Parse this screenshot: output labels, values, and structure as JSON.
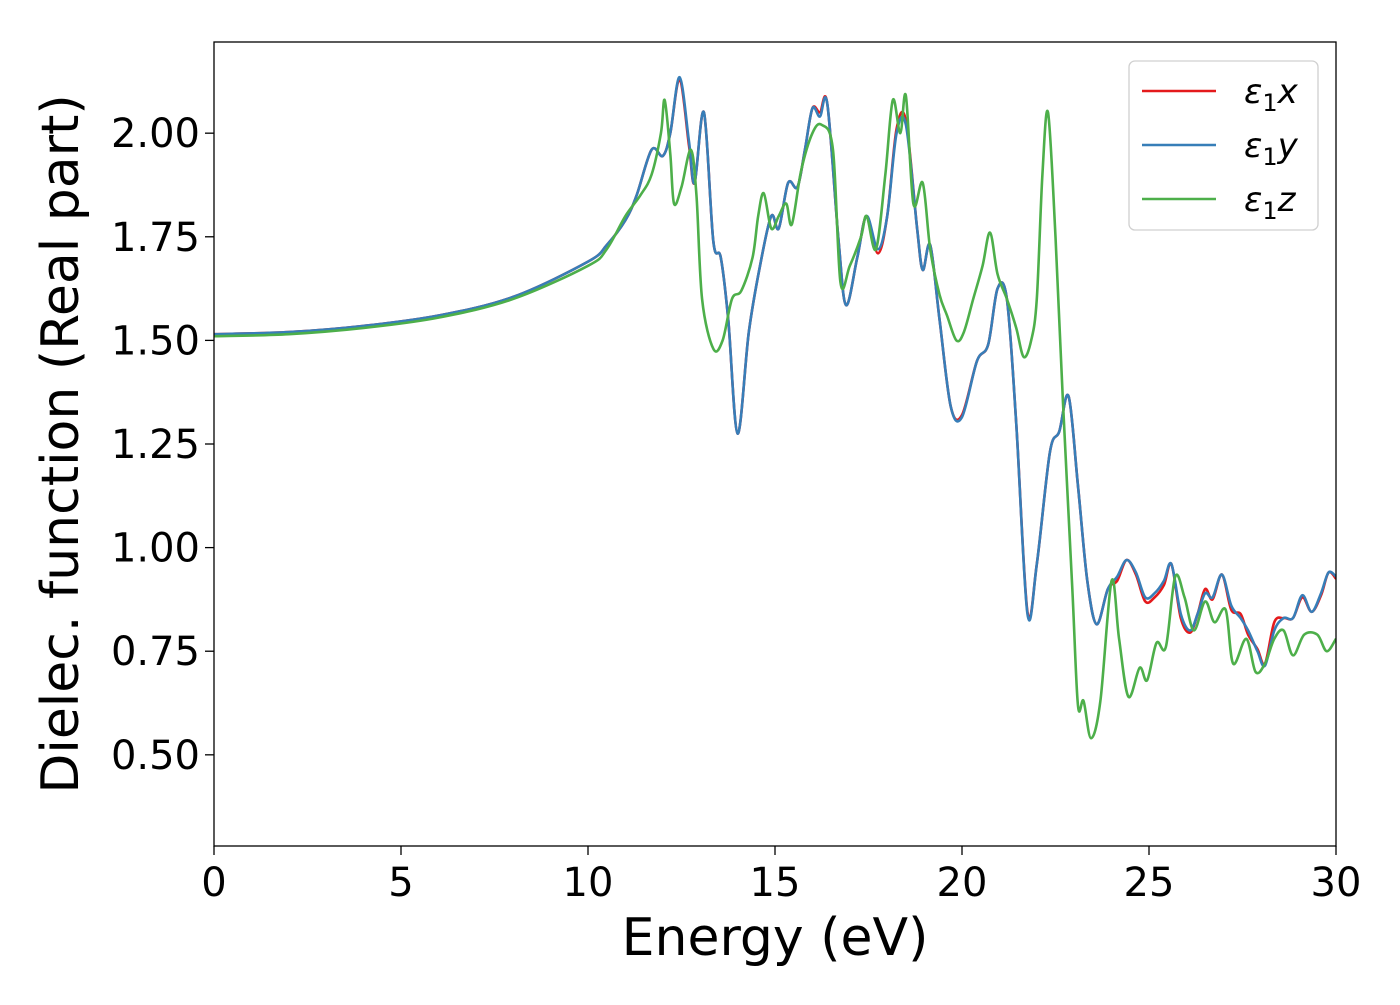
{
  "chart_data": {
    "type": "line",
    "xlabel": "Energy (eV)",
    "ylabel": "Dielec. function (Real part)",
    "xlim": [
      0,
      30
    ],
    "ylim": [
      0.28,
      2.22
    ],
    "x_ticks": [
      0,
      5,
      10,
      15,
      20,
      25,
      30
    ],
    "x_tick_labels": [
      "0",
      "5",
      "10",
      "15",
      "20",
      "25",
      "30"
    ],
    "y_ticks": [
      0.5,
      0.75,
      1.0,
      1.25,
      1.5,
      1.75,
      2.0
    ],
    "y_tick_labels": [
      "0.50",
      "0.75",
      "1.00",
      "1.25",
      "1.50",
      "1.75",
      "2.00"
    ],
    "grid": false,
    "legend_position": "top-right",
    "series": [
      {
        "name": "ε₁x",
        "legend_main": "ε",
        "legend_sub": "1",
        "legend_suffix": "x",
        "color": "#e41a1c",
        "points": [
          [
            0,
            1.515
          ],
          [
            2,
            1.52
          ],
          [
            4,
            1.535
          ],
          [
            6,
            1.56
          ],
          [
            8,
            1.605
          ],
          [
            10,
            1.69
          ],
          [
            10.5,
            1.73
          ],
          [
            11,
            1.79
          ],
          [
            11.3,
            1.85
          ],
          [
            11.7,
            1.96
          ],
          [
            12.0,
            1.945
          ],
          [
            12.2,
            2.0
          ],
          [
            12.45,
            2.13
          ],
          [
            12.7,
            1.97
          ],
          [
            12.85,
            1.88
          ],
          [
            13.1,
            2.05
          ],
          [
            13.35,
            1.74
          ],
          [
            13.55,
            1.7
          ],
          [
            13.75,
            1.55
          ],
          [
            14.0,
            1.275
          ],
          [
            14.3,
            1.52
          ],
          [
            14.6,
            1.68
          ],
          [
            14.9,
            1.8
          ],
          [
            15.1,
            1.77
          ],
          [
            15.35,
            1.88
          ],
          [
            15.6,
            1.87
          ],
          [
            15.8,
            1.96
          ],
          [
            16.0,
            2.06
          ],
          [
            16.2,
            2.05
          ],
          [
            16.4,
            2.07
          ],
          [
            16.7,
            1.74
          ],
          [
            16.9,
            1.585
          ],
          [
            17.2,
            1.7
          ],
          [
            17.45,
            1.8
          ],
          [
            17.75,
            1.71
          ],
          [
            18.0,
            1.8
          ],
          [
            18.25,
            2.01
          ],
          [
            18.5,
            2.03
          ],
          [
            18.8,
            1.77
          ],
          [
            18.95,
            1.67
          ],
          [
            19.15,
            1.73
          ],
          [
            19.4,
            1.55
          ],
          [
            19.7,
            1.34
          ],
          [
            20.0,
            1.32
          ],
          [
            20.4,
            1.45
          ],
          [
            20.7,
            1.49
          ],
          [
            20.95,
            1.625
          ],
          [
            21.2,
            1.6
          ],
          [
            21.45,
            1.3
          ],
          [
            21.75,
            0.845
          ],
          [
            22.0,
            0.96
          ],
          [
            22.35,
            1.23
          ],
          [
            22.6,
            1.28
          ],
          [
            22.85,
            1.365
          ],
          [
            23.1,
            1.15
          ],
          [
            23.35,
            0.92
          ],
          [
            23.6,
            0.815
          ],
          [
            23.9,
            0.9
          ],
          [
            24.15,
            0.92
          ],
          [
            24.4,
            0.97
          ],
          [
            24.65,
            0.935
          ],
          [
            24.9,
            0.87
          ],
          [
            25.15,
            0.88
          ],
          [
            25.4,
            0.91
          ],
          [
            25.6,
            0.96
          ],
          [
            25.85,
            0.83
          ],
          [
            26.1,
            0.795
          ],
          [
            26.3,
            0.84
          ],
          [
            26.5,
            0.9
          ],
          [
            26.7,
            0.875
          ],
          [
            26.95,
            0.935
          ],
          [
            27.2,
            0.85
          ],
          [
            27.45,
            0.84
          ],
          [
            27.65,
            0.79
          ],
          [
            27.9,
            0.755
          ],
          [
            28.1,
            0.72
          ],
          [
            28.35,
            0.82
          ],
          [
            28.6,
            0.83
          ],
          [
            28.85,
            0.83
          ],
          [
            29.1,
            0.88
          ],
          [
            29.35,
            0.845
          ],
          [
            29.6,
            0.885
          ],
          [
            29.8,
            0.94
          ],
          [
            30.0,
            0.925
          ]
        ]
      },
      {
        "name": "ε₁y",
        "legend_main": "ε",
        "legend_sub": "1",
        "legend_suffix": "y",
        "color": "#377eb8",
        "points": [
          [
            0,
            1.515
          ],
          [
            2,
            1.52
          ],
          [
            4,
            1.535
          ],
          [
            6,
            1.56
          ],
          [
            8,
            1.605
          ],
          [
            10,
            1.69
          ],
          [
            10.5,
            1.73
          ],
          [
            11,
            1.79
          ],
          [
            11.3,
            1.85
          ],
          [
            11.7,
            1.96
          ],
          [
            12.0,
            1.945
          ],
          [
            12.2,
            2.0
          ],
          [
            12.45,
            2.135
          ],
          [
            12.7,
            1.98
          ],
          [
            12.85,
            1.88
          ],
          [
            13.1,
            2.05
          ],
          [
            13.35,
            1.74
          ],
          [
            13.55,
            1.7
          ],
          [
            13.75,
            1.55
          ],
          [
            14.0,
            1.275
          ],
          [
            14.3,
            1.52
          ],
          [
            14.6,
            1.68
          ],
          [
            14.9,
            1.8
          ],
          [
            15.1,
            1.77
          ],
          [
            15.35,
            1.88
          ],
          [
            15.6,
            1.87
          ],
          [
            15.8,
            1.96
          ],
          [
            16.0,
            2.06
          ],
          [
            16.2,
            2.04
          ],
          [
            16.4,
            2.07
          ],
          [
            16.7,
            1.74
          ],
          [
            16.9,
            1.585
          ],
          [
            17.2,
            1.7
          ],
          [
            17.45,
            1.8
          ],
          [
            17.75,
            1.72
          ],
          [
            18.0,
            1.8
          ],
          [
            18.25,
            2.0
          ],
          [
            18.5,
            2.02
          ],
          [
            18.8,
            1.77
          ],
          [
            18.95,
            1.67
          ],
          [
            19.15,
            1.73
          ],
          [
            19.4,
            1.55
          ],
          [
            19.7,
            1.34
          ],
          [
            20.0,
            1.315
          ],
          [
            20.4,
            1.45
          ],
          [
            20.7,
            1.49
          ],
          [
            20.95,
            1.625
          ],
          [
            21.2,
            1.6
          ],
          [
            21.45,
            1.3
          ],
          [
            21.75,
            0.84
          ],
          [
            22.0,
            0.96
          ],
          [
            22.35,
            1.23
          ],
          [
            22.6,
            1.28
          ],
          [
            22.85,
            1.365
          ],
          [
            23.1,
            1.15
          ],
          [
            23.35,
            0.92
          ],
          [
            23.6,
            0.815
          ],
          [
            23.9,
            0.9
          ],
          [
            24.15,
            0.93
          ],
          [
            24.4,
            0.97
          ],
          [
            24.65,
            0.94
          ],
          [
            24.9,
            0.88
          ],
          [
            25.15,
            0.89
          ],
          [
            25.4,
            0.92
          ],
          [
            25.6,
            0.96
          ],
          [
            25.85,
            0.84
          ],
          [
            26.1,
            0.8
          ],
          [
            26.3,
            0.84
          ],
          [
            26.5,
            0.89
          ],
          [
            26.7,
            0.88
          ],
          [
            26.95,
            0.935
          ],
          [
            27.2,
            0.86
          ],
          [
            27.45,
            0.83
          ],
          [
            27.65,
            0.8
          ],
          [
            27.9,
            0.75
          ],
          [
            28.1,
            0.715
          ],
          [
            28.35,
            0.8
          ],
          [
            28.6,
            0.83
          ],
          [
            28.85,
            0.83
          ],
          [
            29.1,
            0.885
          ],
          [
            29.35,
            0.845
          ],
          [
            29.6,
            0.89
          ],
          [
            29.8,
            0.94
          ],
          [
            30.0,
            0.93
          ]
        ]
      },
      {
        "name": "ε₁z",
        "legend_main": "ε",
        "legend_sub": "1",
        "legend_suffix": "z",
        "color": "#4daf4a",
        "points": [
          [
            0,
            1.51
          ],
          [
            2,
            1.515
          ],
          [
            4,
            1.53
          ],
          [
            6,
            1.555
          ],
          [
            8,
            1.6
          ],
          [
            10,
            1.68
          ],
          [
            10.5,
            1.72
          ],
          [
            11,
            1.8
          ],
          [
            11.4,
            1.85
          ],
          [
            11.7,
            1.9
          ],
          [
            11.95,
            2.0
          ],
          [
            12.05,
            2.08
          ],
          [
            12.2,
            1.95
          ],
          [
            12.3,
            1.83
          ],
          [
            12.5,
            1.87
          ],
          [
            12.75,
            1.96
          ],
          [
            12.9,
            1.85
          ],
          [
            13.05,
            1.6
          ],
          [
            13.35,
            1.48
          ],
          [
            13.6,
            1.5
          ],
          [
            13.85,
            1.6
          ],
          [
            14.1,
            1.62
          ],
          [
            14.4,
            1.7
          ],
          [
            14.55,
            1.8
          ],
          [
            14.7,
            1.855
          ],
          [
            14.9,
            1.77
          ],
          [
            15.1,
            1.8
          ],
          [
            15.3,
            1.83
          ],
          [
            15.45,
            1.78
          ],
          [
            15.7,
            1.91
          ],
          [
            16.0,
            2.0
          ],
          [
            16.25,
            2.02
          ],
          [
            16.55,
            1.96
          ],
          [
            16.75,
            1.64
          ],
          [
            17.0,
            1.68
          ],
          [
            17.3,
            1.75
          ],
          [
            17.45,
            1.8
          ],
          [
            17.7,
            1.72
          ],
          [
            17.95,
            1.9
          ],
          [
            18.15,
            2.08
          ],
          [
            18.35,
            2.0
          ],
          [
            18.5,
            2.09
          ],
          [
            18.7,
            1.83
          ],
          [
            18.95,
            1.88
          ],
          [
            19.15,
            1.72
          ],
          [
            19.4,
            1.61
          ],
          [
            19.6,
            1.56
          ],
          [
            19.85,
            1.5
          ],
          [
            20.05,
            1.52
          ],
          [
            20.3,
            1.6
          ],
          [
            20.55,
            1.68
          ],
          [
            20.75,
            1.76
          ],
          [
            20.95,
            1.66
          ],
          [
            21.2,
            1.6
          ],
          [
            21.45,
            1.53
          ],
          [
            21.65,
            1.46
          ],
          [
            21.85,
            1.5
          ],
          [
            22.0,
            1.6
          ],
          [
            22.15,
            1.9
          ],
          [
            22.3,
            2.05
          ],
          [
            22.5,
            1.75
          ],
          [
            22.7,
            1.35
          ],
          [
            22.95,
            0.9
          ],
          [
            23.1,
            0.62
          ],
          [
            23.25,
            0.63
          ],
          [
            23.45,
            0.54
          ],
          [
            23.7,
            0.63
          ],
          [
            24.0,
            0.92
          ],
          [
            24.2,
            0.78
          ],
          [
            24.45,
            0.64
          ],
          [
            24.75,
            0.71
          ],
          [
            24.95,
            0.68
          ],
          [
            25.2,
            0.77
          ],
          [
            25.45,
            0.76
          ],
          [
            25.7,
            0.93
          ],
          [
            25.95,
            0.88
          ],
          [
            26.2,
            0.8
          ],
          [
            26.5,
            0.87
          ],
          [
            26.75,
            0.82
          ],
          [
            27.05,
            0.85
          ],
          [
            27.25,
            0.72
          ],
          [
            27.6,
            0.78
          ],
          [
            27.85,
            0.7
          ],
          [
            28.1,
            0.72
          ],
          [
            28.35,
            0.78
          ],
          [
            28.6,
            0.8
          ],
          [
            28.85,
            0.74
          ],
          [
            29.15,
            0.79
          ],
          [
            29.5,
            0.79
          ],
          [
            29.75,
            0.75
          ],
          [
            30.0,
            0.78
          ]
        ]
      }
    ]
  }
}
